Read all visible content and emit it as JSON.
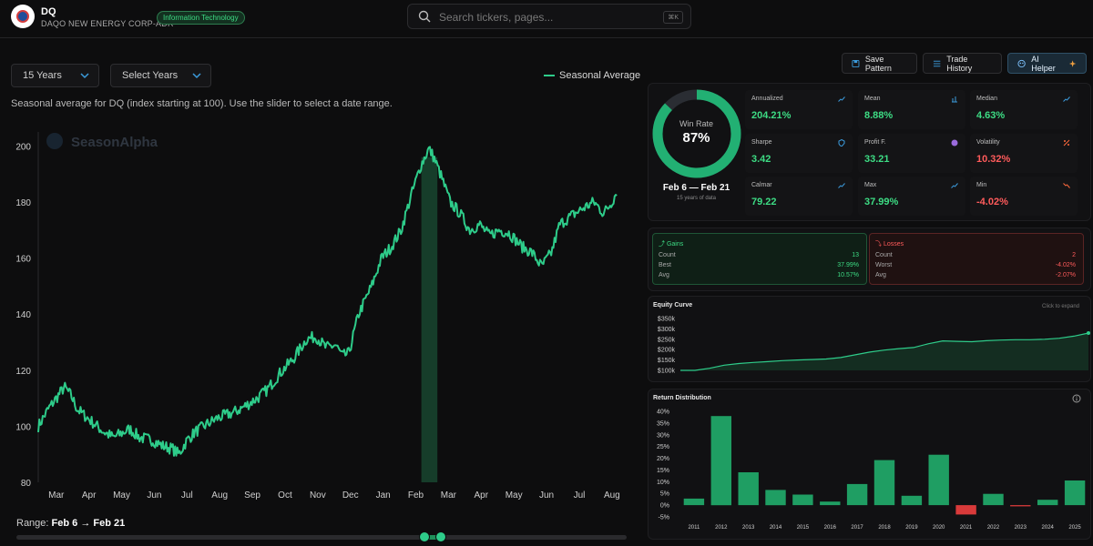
{
  "header": {
    "ticker": "DQ",
    "company": "DAQO NEW ENERGY CORP-ADR",
    "sector": "Information Technology",
    "search_placeholder": "Search tickers, pages...",
    "search_shortcut": "⌘K"
  },
  "controls": {
    "years_select": "15 Years",
    "select_years": "Select Years",
    "legend": "Seasonal Average",
    "description": "Seasonal average for DQ (index starting at 100). Use the slider to select a date range."
  },
  "actions": {
    "save_pattern": "Save Pattern",
    "trade_history": "Trade History",
    "ai_helper": "AI Helper"
  },
  "watermark": "SeasonAlpha",
  "range": {
    "label": "Range:",
    "value": "Feb 6 → Feb 21",
    "start_fraction": 0.669,
    "end_fraction": 0.695
  },
  "winrate": {
    "label": "Win Rate",
    "value": "87%",
    "fraction": 0.87,
    "period": "Feb 6 — Feb 21",
    "note": "15 years of data"
  },
  "metrics": [
    {
      "label": "Annualized",
      "value": "204.21%",
      "tone": "pos",
      "icon": "trend-up-icon"
    },
    {
      "label": "Mean",
      "value": "8.88%",
      "tone": "pos",
      "icon": "bar-chart-icon"
    },
    {
      "label": "Median",
      "value": "4.63%",
      "tone": "pos",
      "icon": "activity-icon"
    },
    {
      "label": "Sharpe",
      "value": "3.42",
      "tone": "pos",
      "icon": "shield-icon"
    },
    {
      "label": "Profit F.",
      "value": "33.21",
      "tone": "pos",
      "icon": "circle-icon"
    },
    {
      "label": "Volatility",
      "value": "10.32%",
      "tone": "neg",
      "icon": "percent-icon"
    },
    {
      "label": "Calmar",
      "value": "79.22",
      "tone": "pos",
      "icon": "pulse-icon"
    },
    {
      "label": "Max",
      "value": "37.99%",
      "tone": "pos",
      "icon": "trend-up-icon"
    },
    {
      "label": "Min",
      "value": "-4.02%",
      "tone": "neg",
      "icon": "trend-down-icon"
    }
  ],
  "gains": {
    "title": "Gains",
    "rows": [
      {
        "label": "Count",
        "value": "13"
      },
      {
        "label": "Best",
        "value": "37.99%"
      },
      {
        "label": "Avg",
        "value": "10.57%"
      }
    ]
  },
  "losses": {
    "title": "Losses",
    "rows": [
      {
        "label": "Count",
        "value": "2"
      },
      {
        "label": "Worst",
        "value": "-4.02%"
      },
      {
        "label": "Avg",
        "value": "-2.07%"
      }
    ]
  },
  "equity": {
    "title": "Equity Curve",
    "note": "Click to expand"
  },
  "distribution": {
    "title": "Return Distribution"
  },
  "chart_data": [
    {
      "type": "line",
      "name": "seasonal-chart",
      "series": [
        {
          "name": "Seasonal Average"
        }
      ],
      "x_ticks": [
        "Mar",
        "Apr",
        "May",
        "Jun",
        "Jul",
        "Aug",
        "Sep",
        "Oct",
        "Nov",
        "Dec",
        "Jan",
        "Feb",
        "Mar",
        "Apr",
        "May",
        "Jun",
        "Jul",
        "Aug"
      ],
      "y_ticks": [
        80,
        100,
        120,
        140,
        160,
        180,
        200
      ],
      "ylim": [
        80,
        205
      ],
      "x_range_months": [
        0,
        18
      ],
      "highlight_months": [
        11.72,
        12.21
      ],
      "anchors": [
        [
          0,
          100
        ],
        [
          0.3,
          106
        ],
        [
          0.55,
          110
        ],
        [
          0.8,
          114
        ],
        [
          1.0,
          111
        ],
        [
          1.2,
          106
        ],
        [
          1.5,
          103
        ],
        [
          2.0,
          98
        ],
        [
          2.3,
          96
        ],
        [
          2.8,
          99
        ],
        [
          3.1,
          96
        ],
        [
          3.5,
          95
        ],
        [
          3.8,
          93
        ],
        [
          4.1,
          92
        ],
        [
          4.3,
          90
        ],
        [
          4.55,
          95
        ],
        [
          4.8,
          98
        ],
        [
          5.2,
          101
        ],
        [
          5.5,
          103
        ],
        [
          6.0,
          105
        ],
        [
          6.3,
          107
        ],
        [
          6.7,
          110
        ],
        [
          7.0,
          113
        ],
        [
          7.4,
          119
        ],
        [
          7.8,
          124
        ],
        [
          8.2,
          131
        ],
        [
          8.5,
          132
        ],
        [
          8.8,
          128
        ],
        [
          9.1,
          129
        ],
        [
          9.3,
          125
        ],
        [
          9.5,
          126
        ],
        [
          9.8,
          140
        ],
        [
          10.2,
          150
        ],
        [
          10.5,
          160
        ],
        [
          10.8,
          164
        ],
        [
          11.1,
          170
        ],
        [
          11.4,
          182
        ],
        [
          11.7,
          193
        ],
        [
          11.95,
          199
        ],
        [
          12.1,
          196
        ],
        [
          12.3,
          190
        ],
        [
          12.6,
          180
        ],
        [
          12.9,
          176
        ],
        [
          13.2,
          170
        ],
        [
          13.5,
          172
        ],
        [
          13.8,
          168
        ],
        [
          14.1,
          170
        ],
        [
          14.4,
          169
        ],
        [
          14.8,
          164
        ],
        [
          15.1,
          162
        ],
        [
          15.4,
          157
        ],
        [
          15.7,
          162
        ],
        [
          15.95,
          172
        ],
        [
          16.3,
          175
        ],
        [
          16.7,
          178
        ],
        [
          17.0,
          180
        ],
        [
          17.3,
          176
        ],
        [
          17.55,
          180
        ],
        [
          17.7,
          184
        ]
      ]
    },
    {
      "type": "area",
      "name": "equity-curve",
      "y_ticks": [
        "$350k",
        "$300k",
        "$250k",
        "$200k",
        "$150k",
        "$100k"
      ],
      "ylim": [
        100,
        350
      ],
      "values": [
        100,
        100,
        110,
        125,
        133,
        138,
        142,
        147,
        150,
        152,
        155,
        162,
        175,
        188,
        198,
        205,
        210,
        228,
        242,
        240,
        238,
        243,
        246,
        248,
        248,
        250,
        255,
        265,
        280
      ]
    },
    {
      "type": "bar",
      "name": "return-distribution",
      "categories": [
        "2011",
        "2012",
        "2013",
        "2014",
        "2015",
        "2016",
        "2017",
        "2018",
        "2019",
        "2020",
        "2021",
        "2022",
        "2023",
        "2024",
        "2025"
      ],
      "values": [
        2.8,
        38.0,
        14.0,
        6.5,
        4.5,
        1.5,
        9.0,
        19.2,
        4.0,
        21.5,
        -4.0,
        4.8,
        -0.5,
        2.3,
        10.5
      ],
      "y_ticks": [
        "40%",
        "35%",
        "30%",
        "25%",
        "20%",
        "15%",
        "10%",
        "5%",
        "0%",
        "-5%"
      ],
      "ylim": [
        -5,
        40
      ]
    }
  ]
}
